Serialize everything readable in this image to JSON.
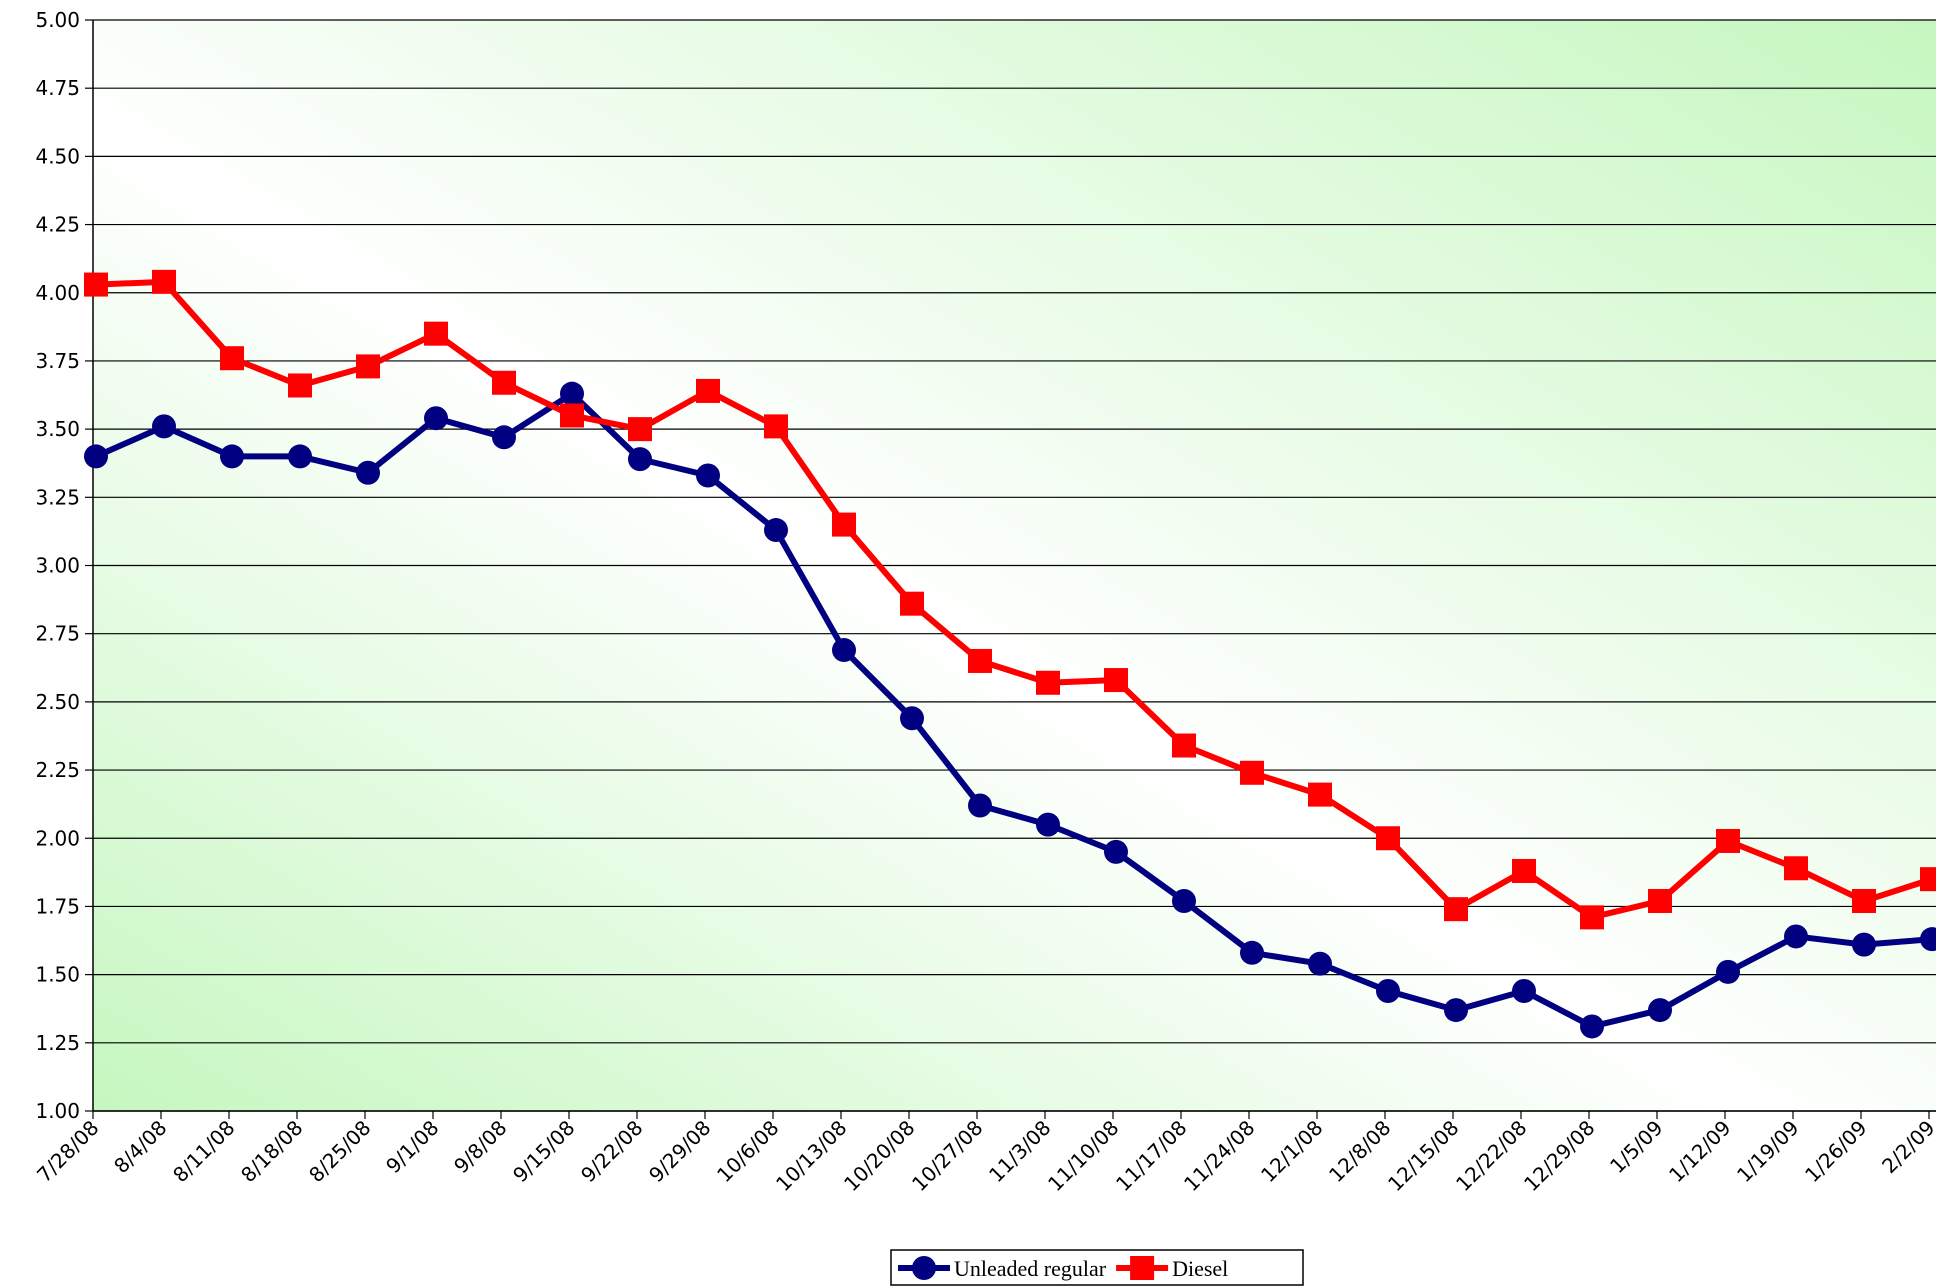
{
  "chart_data": {
    "type": "line",
    "categories": [
      "7/28/08",
      "8/4/08",
      "8/11/08",
      "8/18/08",
      "8/25/08",
      "9/1/08",
      "9/8/08",
      "9/15/08",
      "9/22/08",
      "9/29/08",
      "10/6/08",
      "10/13/08",
      "10/20/08",
      "10/27/08",
      "11/3/08",
      "11/10/08",
      "11/17/08",
      "11/24/08",
      "12/1/08",
      "12/8/08",
      "12/15/08",
      "12/22/08",
      "12/29/08",
      "1/5/09",
      "1/12/09",
      "1/19/09",
      "1/26/09",
      "2/2/09"
    ],
    "series": [
      {
        "name": "Unleaded regular",
        "color": "#000080",
        "marker": "circle",
        "values": [
          3.4,
          3.51,
          3.4,
          3.4,
          3.34,
          3.54,
          3.47,
          3.63,
          3.39,
          3.33,
          3.13,
          2.69,
          2.44,
          2.12,
          2.05,
          1.95,
          1.77,
          1.58,
          1.54,
          1.44,
          1.37,
          1.44,
          1.31,
          1.37,
          1.51,
          1.64,
          1.61,
          1.63
        ]
      },
      {
        "name": "Diesel",
        "color": "#ff0000",
        "marker": "square",
        "values": [
          4.03,
          4.04,
          3.76,
          3.66,
          3.73,
          3.85,
          3.67,
          3.55,
          3.5,
          3.64,
          3.51,
          3.15,
          2.86,
          2.65,
          2.57,
          2.58,
          2.34,
          2.24,
          2.16,
          2.0,
          1.74,
          1.88,
          1.71,
          1.77,
          1.99,
          1.89,
          1.77,
          1.85
        ]
      }
    ],
    "ylim": [
      1,
      5
    ],
    "yticks": [
      {
        "value": 1,
        "label": "1.00"
      },
      {
        "value": 1.25,
        "label": "1.25"
      },
      {
        "value": 1.5,
        "label": "1.50"
      },
      {
        "value": 1.75,
        "label": "1.75"
      },
      {
        "value": 2,
        "label": "2.00"
      },
      {
        "value": 2.25,
        "label": "2.25"
      },
      {
        "value": 2.5,
        "label": "2.50"
      },
      {
        "value": 2.75,
        "label": "2.75"
      },
      {
        "value": 3,
        "label": "3.00"
      },
      {
        "value": 3.25,
        "label": "3.25"
      },
      {
        "value": 3.5,
        "label": "3.50"
      },
      {
        "value": 3.75,
        "label": "3.75"
      },
      {
        "value": 4,
        "label": "4.00"
      },
      {
        "value": 4.25,
        "label": "4.25"
      },
      {
        "value": 4.5,
        "label": "4.50"
      },
      {
        "value": 4.75,
        "label": "4.75"
      },
      {
        "value": 5,
        "label": "5.00"
      }
    ],
    "grid": true,
    "legend": "bottom"
  }
}
